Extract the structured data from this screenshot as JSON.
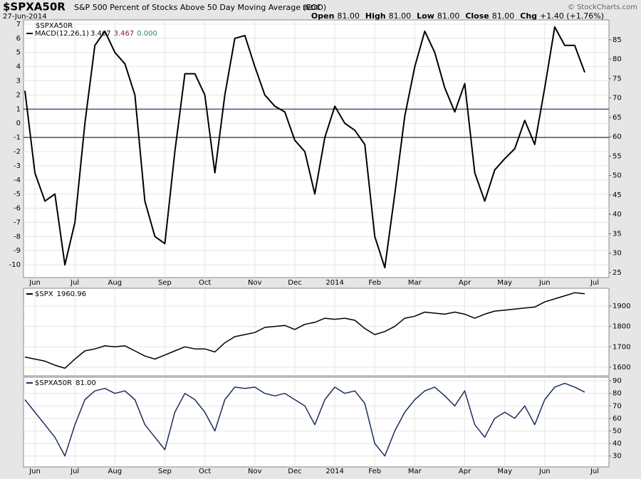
{
  "header": {
    "symbol": "$SPXA50R",
    "description": "S&P 500 Percent of Stocks Above 50 Day Moving Average (EOD)",
    "exchange": "INDX",
    "date": "27-Jun-2014",
    "credit": "© StockCharts.com",
    "quote": [
      {
        "label": "Open",
        "value": "81.00"
      },
      {
        "label": "High",
        "value": "81.00"
      },
      {
        "label": "Low",
        "value": "81.00"
      },
      {
        "label": "Close",
        "value": "81.00"
      },
      {
        "label": "Chg",
        "value": "+1.40 (+1.76%)"
      }
    ]
  },
  "chart_data": [
    {
      "type": "line",
      "symbol": "$SPXA50R",
      "categories": [
        null,
        "Jun",
        null,
        null,
        null,
        "Jul",
        null,
        null,
        null,
        "Aug",
        null,
        null,
        null,
        null,
        "Sep",
        null,
        null,
        null,
        "Oct",
        null,
        null,
        null,
        null,
        "Nov",
        null,
        null,
        null,
        "Dec",
        null,
        null,
        null,
        "2014",
        null,
        null,
        null,
        "Feb",
        null,
        null,
        null,
        "Mar",
        null,
        null,
        null,
        null,
        "Apr",
        null,
        null,
        null,
        "May",
        null,
        null,
        null,
        "Jun",
        null,
        null,
        null,
        null,
        "Jul"
      ],
      "series": [
        {
          "name": "MACD(12,26,1)",
          "color": "#000000",
          "values": [
            2.3,
            -3.5,
            -5.5,
            -5,
            -10,
            -7,
            0,
            5.5,
            6.5,
            5,
            4.2,
            2,
            -5.5,
            -8,
            -8.5,
            -2,
            3.5,
            3.5,
            2,
            -3.5,
            2,
            6,
            6.2,
            4,
            2,
            1.2,
            0.8,
            -1.2,
            -2,
            -5,
            -1,
            1.2,
            0,
            -0.5,
            -1.5,
            -8,
            -10.2,
            -5,
            0.5,
            4,
            6.5,
            5,
            2.5,
            0.8,
            2.8,
            -3.5,
            -5.5,
            -3.3,
            -2.5,
            -1.8,
            0.2,
            -1.5,
            2.5,
            6.8,
            5.5,
            5.5,
            3.6,
            null
          ]
        }
      ],
      "legend_values": [
        {
          "text": "3.467",
          "color": "#000000"
        },
        {
          "text": "3.467",
          "color": "#8b1a2a"
        },
        {
          "text": "0.000",
          "color": "#2e8b57"
        }
      ],
      "ylim": [
        -10.9,
        7.3
      ],
      "yticks": [
        -10,
        -9,
        -8,
        -7,
        -6,
        -5,
        -4,
        -3,
        -2,
        -1,
        0,
        1,
        2,
        3,
        4,
        5,
        6,
        7
      ],
      "y2lim": [
        23.7,
        90.1
      ],
      "y2ticks": [
        25,
        30,
        35,
        40,
        45,
        50,
        55,
        60,
        65,
        70,
        75,
        80,
        85
      ],
      "hlines": [
        1,
        -1
      ],
      "hline_color": "#1c2e5a",
      "grid": true
    },
    {
      "type": "line",
      "categories": [
        null,
        "Jun",
        null,
        null,
        null,
        "Jul",
        null,
        null,
        null,
        "Aug",
        null,
        null,
        null,
        null,
        "Sep",
        null,
        null,
        null,
        "Oct",
        null,
        null,
        null,
        null,
        "Nov",
        null,
        null,
        null,
        "Dec",
        null,
        null,
        null,
        "2014",
        null,
        null,
        null,
        "Feb",
        null,
        null,
        null,
        "Mar",
        null,
        null,
        null,
        null,
        "Apr",
        null,
        null,
        null,
        "May",
        null,
        null,
        null,
        "Jun",
        null,
        null,
        null,
        null,
        "Jul"
      ],
      "series": [
        {
          "name": "$SPX",
          "last_label": "1960.96",
          "color": "#000000",
          "values": [
            1650,
            1640,
            1630,
            1610,
            1595,
            1640,
            1680,
            1690,
            1705,
            1700,
            1705,
            1680,
            1655,
            1640,
            1660,
            1680,
            1700,
            1690,
            1690,
            1675,
            1720,
            1750,
            1760,
            1770,
            1795,
            1800,
            1805,
            1785,
            1810,
            1820,
            1840,
            1835,
            1840,
            1830,
            1790,
            1760,
            1775,
            1800,
            1840,
            1850,
            1870,
            1865,
            1860,
            1870,
            1860,
            1840,
            1860,
            1875,
            1880,
            1885,
            1890,
            1895,
            1920,
            1935,
            1950,
            1965,
            1960,
            null
          ]
        }
      ],
      "ylim": [
        1558,
        1987
      ],
      "y2ticks": [
        1600,
        1700,
        1800,
        1900
      ],
      "grid": true
    },
    {
      "type": "line",
      "categories": [
        null,
        "Jun",
        null,
        null,
        null,
        "Jul",
        null,
        null,
        null,
        "Aug",
        null,
        null,
        null,
        null,
        "Sep",
        null,
        null,
        null,
        "Oct",
        null,
        null,
        null,
        null,
        "Nov",
        null,
        null,
        null,
        "Dec",
        null,
        null,
        null,
        "2014",
        null,
        null,
        null,
        "Feb",
        null,
        null,
        null,
        "Mar",
        null,
        null,
        null,
        null,
        "Apr",
        null,
        null,
        null,
        "May",
        null,
        null,
        null,
        "Jun",
        null,
        null,
        null,
        null,
        "Jul"
      ],
      "series": [
        {
          "name": "$SPXA50R",
          "last_label": "81.00",
          "color": "#1c2e5a",
          "values": [
            75,
            65,
            55,
            45,
            30,
            55,
            75,
            82,
            84,
            80,
            82,
            75,
            55,
            45,
            35,
            65,
            80,
            75,
            65,
            50,
            75,
            85,
            84,
            85,
            80,
            78,
            80,
            75,
            70,
            55,
            75,
            85,
            80,
            82,
            72,
            40,
            30,
            50,
            65,
            75,
            82,
            85,
            78,
            70,
            82,
            55,
            45,
            60,
            65,
            60,
            70,
            55,
            75,
            85,
            88,
            85,
            81,
            null
          ]
        }
      ],
      "ylim": [
        21.3,
        92.9
      ],
      "y2ticks": [
        30,
        40,
        50,
        60,
        70,
        80,
        90
      ],
      "grid": true
    }
  ]
}
